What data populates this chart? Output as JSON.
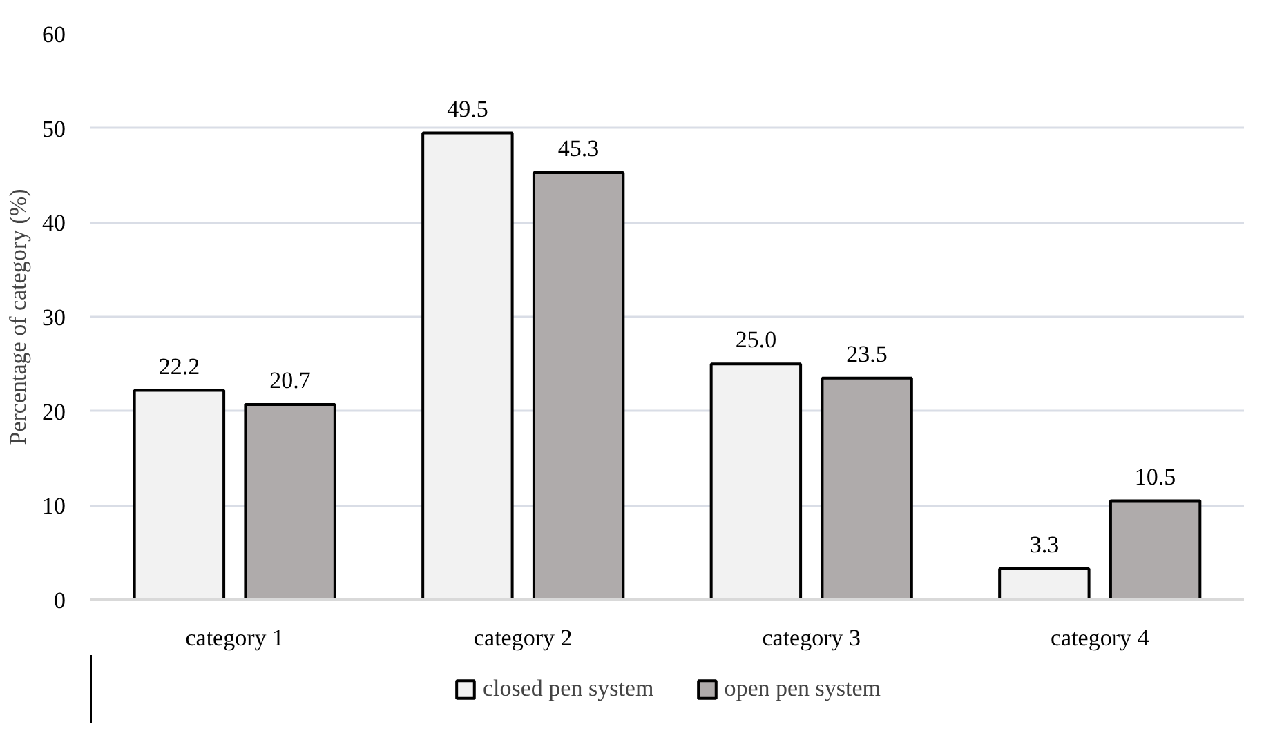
{
  "chart_data": {
    "type": "bar",
    "ylabel": "Percentage of category (%)",
    "categories": [
      "category 1",
      "category 2",
      "category 3",
      "category 4"
    ],
    "series": [
      {
        "name": "closed pen system",
        "color": "#f2f2f2",
        "values": [
          22.2,
          49.5,
          25.0,
          3.3
        ]
      },
      {
        "name": "open pen system",
        "color": "#afabab",
        "values": [
          20.7,
          45.3,
          23.5,
          10.5
        ]
      }
    ],
    "value_labels": [
      [
        "22.2",
        "49.5",
        "25.0",
        "3.3"
      ],
      [
        "20.7",
        "45.3",
        "23.5",
        "10.5"
      ]
    ],
    "ylim": [
      0,
      60
    ],
    "yticks": [
      0,
      10,
      20,
      30,
      40,
      50,
      60
    ],
    "grid": "y",
    "legend": "bottom"
  }
}
